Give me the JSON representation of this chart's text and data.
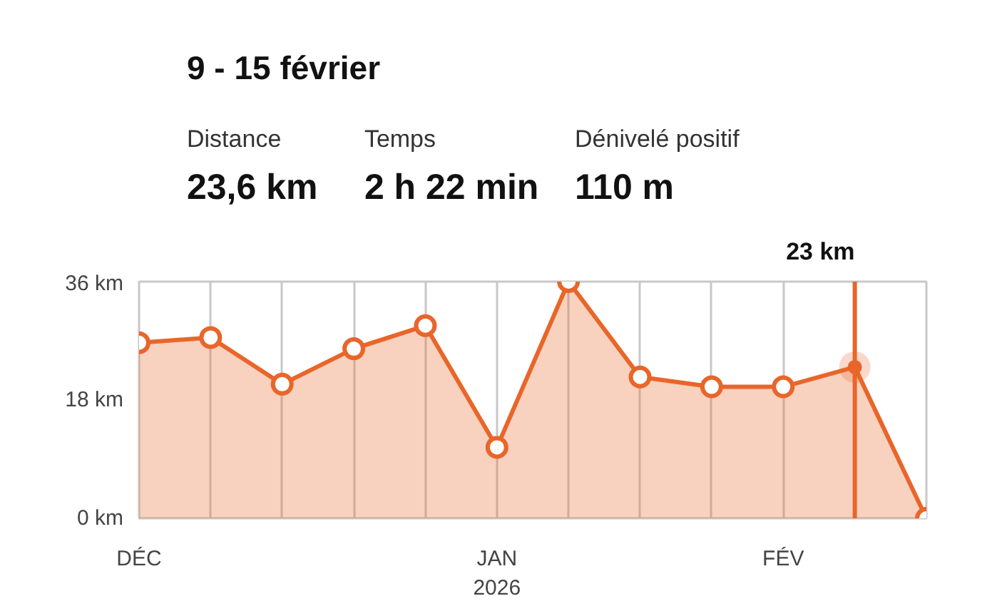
{
  "chart_data": {
    "type": "area",
    "title": "9 - 15 février",
    "annotations": [
      "Distance",
      "23,6 km",
      "Temps",
      "2 h 22 min",
      "Dénivelé positif",
      "110 m",
      "23 km"
    ],
    "categories": [
      "DÉC",
      null,
      null,
      null,
      null,
      "JAN\n2026",
      null,
      null,
      null,
      "FÉV",
      null,
      null
    ],
    "series": [
      {
        "color": "#e8662a",
        "values": [
          26.7,
          27.5,
          20.4,
          25.8,
          29.3,
          10.8,
          36,
          21.5,
          20,
          20,
          23,
          0
        ],
        "colors": [
          "#ffffff",
          "#ffffff",
          "#ffffff",
          "#ffffff",
          "#ffffff",
          "#ffffff",
          "#ffffff",
          "#ffffff",
          "#ffffff",
          "#ffffff",
          "#e8662a",
          "#ffffff"
        ]
      }
    ],
    "ylim": [
      0,
      36
    ],
    "yticks": [
      {
        "value": 0,
        "label": "0 km"
      },
      {
        "value": 18,
        "label": "18 km"
      },
      {
        "value": 36,
        "label": "36 km"
      }
    ],
    "grid": "x",
    "marker": "circle"
  }
}
